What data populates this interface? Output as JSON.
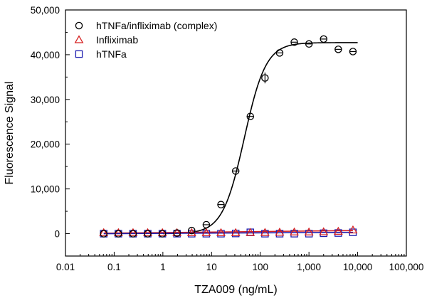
{
  "chart_data": {
    "type": "scatter",
    "title": "",
    "xlabel": "TZA009 (ng/mL)",
    "ylabel": "Fluorescence Signal",
    "xscale": "log",
    "xlim": [
      0.01,
      100000
    ],
    "ylim": [
      -5000,
      50000
    ],
    "x_ticks": [
      0.01,
      0.1,
      1,
      10,
      100,
      1000,
      10000,
      100000
    ],
    "x_tick_labels": [
      "0.01",
      "0.1",
      "1",
      "10",
      "100",
      "1,000",
      "10,000",
      "100,000"
    ],
    "y_ticks": [
      0,
      10000,
      20000,
      30000,
      40000,
      50000
    ],
    "y_tick_labels": [
      "0",
      "10,000",
      "20,000",
      "30,000",
      "40,000",
      "50,000"
    ],
    "legend_position": "top-left",
    "grid": false,
    "series": [
      {
        "name": "hTNFa/infliximab (complex)",
        "marker": "circle",
        "color": "#000000",
        "points": [
          {
            "x": 0.061,
            "y": 0
          },
          {
            "x": 0.122,
            "y": 0
          },
          {
            "x": 0.244,
            "y": 0
          },
          {
            "x": 0.488,
            "y": 0
          },
          {
            "x": 0.977,
            "y": 0
          },
          {
            "x": 1.95,
            "y": 150
          },
          {
            "x": 3.9,
            "y": 700
          },
          {
            "x": 7.8,
            "y": 2000
          },
          {
            "x": 15.6,
            "y": 6500
          },
          {
            "x": 31.3,
            "y": 14000
          },
          {
            "x": 62.5,
            "y": 26200
          },
          {
            "x": 125,
            "y": 34800,
            "err": 1200
          },
          {
            "x": 250,
            "y": 40400
          },
          {
            "x": 500,
            "y": 42800
          },
          {
            "x": 1000,
            "y": 42400
          },
          {
            "x": 2000,
            "y": 43500
          },
          {
            "x": 4000,
            "y": 41200
          },
          {
            "x": 8000,
            "y": 40700
          }
        ],
        "fit": {
          "model": "4PL",
          "bottom": 0,
          "top": 42700,
          "ec50": 47,
          "hill": 1.95
        }
      },
      {
        "name": "Infliximab",
        "marker": "triangle",
        "color": "#d62020",
        "points": [
          {
            "x": 0.061,
            "y": 200
          },
          {
            "x": 0.122,
            "y": 200
          },
          {
            "x": 0.244,
            "y": 200
          },
          {
            "x": 0.488,
            "y": 200
          },
          {
            "x": 0.977,
            "y": 200
          },
          {
            "x": 1.95,
            "y": 200
          },
          {
            "x": 3.9,
            "y": 200
          },
          {
            "x": 7.8,
            "y": 200
          },
          {
            "x": 15.6,
            "y": 200
          },
          {
            "x": 31.3,
            "y": 200
          },
          {
            "x": 62.5,
            "y": 250
          },
          {
            "x": 125,
            "y": 250
          },
          {
            "x": 250,
            "y": 300
          },
          {
            "x": 500,
            "y": 350
          },
          {
            "x": 1000,
            "y": 350
          },
          {
            "x": 2000,
            "y": 400
          },
          {
            "x": 4000,
            "y": 500
          },
          {
            "x": 8000,
            "y": 800
          }
        ],
        "fit": {
          "model": "linear",
          "y_start": 100,
          "y_end": 700
        }
      },
      {
        "name": "hTNFa",
        "marker": "square",
        "color": "#1f1fb0",
        "points": [
          {
            "x": 0.061,
            "y": 0
          },
          {
            "x": 0.122,
            "y": 0
          },
          {
            "x": 0.244,
            "y": 0
          },
          {
            "x": 0.488,
            "y": 0
          },
          {
            "x": 0.977,
            "y": 0
          },
          {
            "x": 1.95,
            "y": 0
          },
          {
            "x": 3.9,
            "y": 0
          },
          {
            "x": 7.8,
            "y": 0
          },
          {
            "x": 15.6,
            "y": 0
          },
          {
            "x": 31.3,
            "y": 50
          },
          {
            "x": 62.5,
            "y": 300
          },
          {
            "x": 125,
            "y": 0
          },
          {
            "x": 250,
            "y": 0
          },
          {
            "x": 500,
            "y": 0
          },
          {
            "x": 1000,
            "y": 0
          },
          {
            "x": 2000,
            "y": 100
          },
          {
            "x": 4000,
            "y": 150
          },
          {
            "x": 8000,
            "y": 300
          }
        ],
        "fit": {
          "model": "linear",
          "y_start": 0,
          "y_end": 300
        }
      }
    ]
  }
}
